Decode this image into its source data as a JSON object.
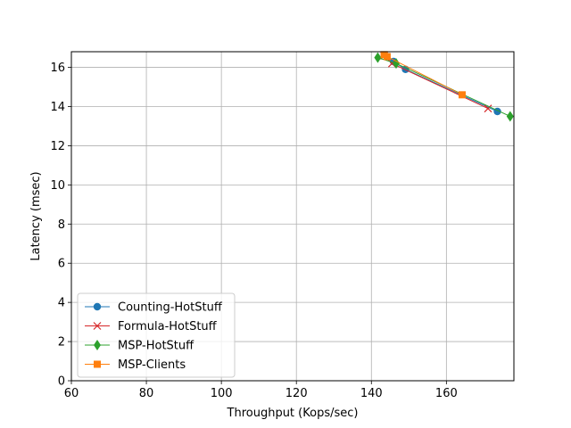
{
  "chart_data": {
    "type": "line",
    "xlabel": "Throughput (Kops/sec)",
    "ylabel": "Latency (msec)",
    "xlim": [
      60,
      178
    ],
    "ylim": [
      0,
      16.8
    ],
    "xticks": [
      60,
      80,
      100,
      120,
      140,
      160
    ],
    "yticks": [
      0,
      2,
      4,
      6,
      8,
      10,
      12,
      14,
      16
    ],
    "grid": true,
    "legend_position": "lower-left",
    "series": [
      {
        "name": "Counting-HotStuff",
        "color": "#1f77b4",
        "marker": "circle",
        "x": [
          145.9,
          149.1,
          173.6
        ],
        "y": [
          16.3,
          15.9,
          13.75
        ]
      },
      {
        "name": "Formula-HotStuff",
        "color": "#d62728",
        "marker": "x",
        "x": [
          143.4,
          145.5,
          171.1
        ],
        "y": [
          16.6,
          16.2,
          13.9
        ]
      },
      {
        "name": "MSP-HotStuff",
        "color": "#2ca02c",
        "marker": "diamond",
        "x": [
          141.7,
          146.6,
          177.0
        ],
        "y": [
          16.5,
          16.2,
          13.5
        ]
      },
      {
        "name": "MSP-Clients",
        "color": "#ff7f0e",
        "marker": "square",
        "x": [
          143.4,
          144.2,
          164.2
        ],
        "y": [
          16.65,
          16.55,
          14.6
        ]
      }
    ]
  }
}
